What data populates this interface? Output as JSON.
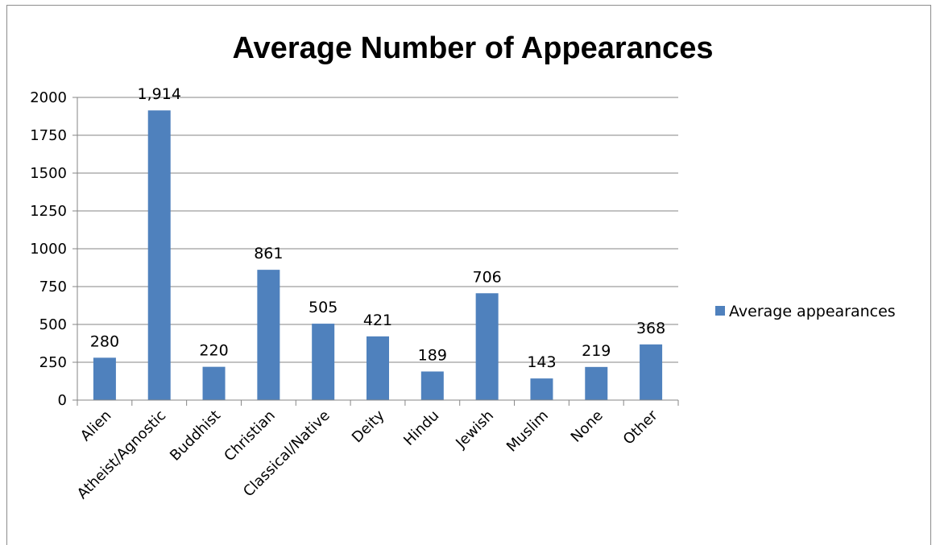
{
  "chart_data": {
    "type": "bar",
    "title": "Average Number of Appearances",
    "xlabel": "",
    "ylabel": "",
    "categories": [
      "Alien",
      "Atheist/Agnostic",
      "Buddhist",
      "Christian",
      "Classical/Native",
      "Deity",
      "Hindu",
      "Jewish",
      "Muslim",
      "None",
      "Other"
    ],
    "series": [
      {
        "name": "Average appearances",
        "values": [
          280,
          1914,
          220,
          861,
          505,
          421,
          189,
          706,
          143,
          219,
          368
        ],
        "data_labels": [
          "280",
          "1,914",
          "220",
          "861",
          "505",
          "421",
          "189",
          "706",
          "143",
          "219",
          "368"
        ],
        "color": "#4f81bd"
      }
    ],
    "ylim": [
      0,
      2000
    ],
    "yticks": [
      0,
      250,
      500,
      750,
      1000,
      1250,
      1500,
      1750,
      2000
    ],
    "grid": true,
    "legend": "right"
  }
}
